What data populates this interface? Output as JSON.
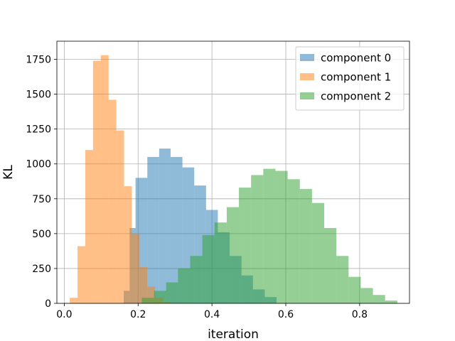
{
  "chart_data": {
    "type": "bar",
    "subtype": "histogram",
    "xlabel": "iteration",
    "ylabel": "KL",
    "xlim": [
      -0.02,
      0.935
    ],
    "ylim": [
      0,
      1880
    ],
    "xticks": [
      0.0,
      0.2,
      0.4,
      0.6,
      0.8
    ],
    "yticks": [
      0,
      250,
      500,
      750,
      1000,
      1250,
      1500,
      1750
    ],
    "grid": true,
    "legend_position": "top-right",
    "alpha": 0.5,
    "series": [
      {
        "name": "component 0",
        "color": "#1f77b4",
        "bins": [
          {
            "x0": 0.161,
            "x1": 0.177,
            "y": 90
          },
          {
            "x0": 0.177,
            "x1": 0.193,
            "y": 540
          },
          {
            "x0": 0.193,
            "x1": 0.225,
            "y": 900
          },
          {
            "x0": 0.225,
            "x1": 0.257,
            "y": 1050
          },
          {
            "x0": 0.257,
            "x1": 0.288,
            "y": 1110
          },
          {
            "x0": 0.288,
            "x1": 0.32,
            "y": 1050
          },
          {
            "x0": 0.32,
            "x1": 0.352,
            "y": 975
          },
          {
            "x0": 0.352,
            "x1": 0.384,
            "y": 845
          },
          {
            "x0": 0.384,
            "x1": 0.416,
            "y": 670
          },
          {
            "x0": 0.416,
            "x1": 0.448,
            "y": 510
          },
          {
            "x0": 0.448,
            "x1": 0.48,
            "y": 340
          },
          {
            "x0": 0.48,
            "x1": 0.511,
            "y": 200
          },
          {
            "x0": 0.511,
            "x1": 0.543,
            "y": 100
          },
          {
            "x0": 0.543,
            "x1": 0.575,
            "y": 45
          }
        ]
      },
      {
        "name": "component 1",
        "color": "#ff7f0e",
        "bins": [
          {
            "x0": 0.015,
            "x1": 0.036,
            "y": 40
          },
          {
            "x0": 0.036,
            "x1": 0.057,
            "y": 410
          },
          {
            "x0": 0.057,
            "x1": 0.078,
            "y": 1100
          },
          {
            "x0": 0.078,
            "x1": 0.099,
            "y": 1740
          },
          {
            "x0": 0.099,
            "x1": 0.12,
            "y": 1780
          },
          {
            "x0": 0.12,
            "x1": 0.141,
            "y": 1460
          },
          {
            "x0": 0.141,
            "x1": 0.162,
            "y": 1240
          },
          {
            "x0": 0.162,
            "x1": 0.183,
            "y": 840
          },
          {
            "x0": 0.183,
            "x1": 0.204,
            "y": 500
          },
          {
            "x0": 0.204,
            "x1": 0.225,
            "y": 260
          },
          {
            "x0": 0.225,
            "x1": 0.246,
            "y": 120
          },
          {
            "x0": 0.246,
            "x1": 0.267,
            "y": 40
          },
          {
            "x0": 0.267,
            "x1": 0.288,
            "y": 10
          }
        ]
      },
      {
        "name": "component 2",
        "color": "#2ca02c",
        "bins": [
          {
            "x0": 0.21,
            "x1": 0.243,
            "y": 40
          },
          {
            "x0": 0.243,
            "x1": 0.276,
            "y": 90
          },
          {
            "x0": 0.276,
            "x1": 0.308,
            "y": 150
          },
          {
            "x0": 0.308,
            "x1": 0.341,
            "y": 250
          },
          {
            "x0": 0.341,
            "x1": 0.374,
            "y": 340
          },
          {
            "x0": 0.374,
            "x1": 0.407,
            "y": 490
          },
          {
            "x0": 0.407,
            "x1": 0.44,
            "y": 580
          },
          {
            "x0": 0.44,
            "x1": 0.473,
            "y": 690
          },
          {
            "x0": 0.473,
            "x1": 0.506,
            "y": 830
          },
          {
            "x0": 0.506,
            "x1": 0.539,
            "y": 920
          },
          {
            "x0": 0.539,
            "x1": 0.572,
            "y": 965
          },
          {
            "x0": 0.572,
            "x1": 0.605,
            "y": 950
          },
          {
            "x0": 0.605,
            "x1": 0.638,
            "y": 890
          },
          {
            "x0": 0.638,
            "x1": 0.671,
            "y": 820
          },
          {
            "x0": 0.671,
            "x1": 0.704,
            "y": 720
          },
          {
            "x0": 0.704,
            "x1": 0.737,
            "y": 540
          },
          {
            "x0": 0.737,
            "x1": 0.77,
            "y": 340
          },
          {
            "x0": 0.77,
            "x1": 0.803,
            "y": 190
          },
          {
            "x0": 0.803,
            "x1": 0.836,
            "y": 110
          },
          {
            "x0": 0.836,
            "x1": 0.869,
            "y": 60
          },
          {
            "x0": 0.869,
            "x1": 0.902,
            "y": 20
          }
        ]
      }
    ]
  }
}
